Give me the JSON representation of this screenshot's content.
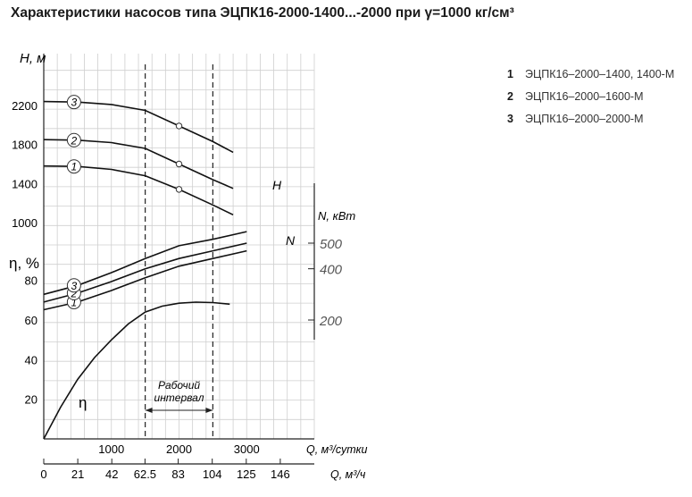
{
  "title": "Характеристики насосов типа  ЭЦПК16-2000-1400...-2000 при γ=1000 кг/см³",
  "legend": [
    {
      "num": "1",
      "name": "ЭЦПК16–2000–1400, 1400-М"
    },
    {
      "num": "2",
      "name": "ЭЦПК16–2000–1600-М"
    },
    {
      "num": "3",
      "name": "ЭЦПК16–2000–2000-М"
    }
  ],
  "chart_data": {
    "type": "line",
    "x_axis_top": {
      "label": "Q, м³/сутки",
      "ticks": [
        0,
        1000,
        2000,
        3000
      ],
      "tick_labels": [
        "1000",
        "2000",
        "3000"
      ],
      "range": [
        0,
        4000
      ]
    },
    "x_axis_bottom": {
      "label": "Q, м³/ч",
      "ticks": [
        0,
        21,
        42,
        62.5,
        83,
        104,
        125,
        146
      ],
      "tick_labels": [
        "0",
        "21",
        "42",
        "62.5",
        "83",
        "104",
        "125",
        "146"
      ]
    },
    "y_axis_head": {
      "label": "H, м",
      "ticks": [
        1000,
        1400,
        1800,
        2200
      ],
      "tick_labels": [
        "1000",
        "1400",
        "1800",
        "2200"
      ]
    },
    "y_axis_eff": {
      "label": "η, %",
      "ticks": [
        20,
        40,
        60,
        80
      ],
      "tick_labels": [
        "20",
        "40",
        "60",
        "80"
      ]
    },
    "y_axis_power": {
      "label": "N, кВт",
      "ticks": [
        200,
        400,
        500
      ],
      "tick_labels": [
        "200",
        "400",
        "500"
      ]
    },
    "working_interval": {
      "label": "Рабочий интервал",
      "label_line1": "Рабочий",
      "label_line2": "интервал",
      "range": [
        1500,
        2500
      ]
    },
    "head_label": "H",
    "power_label": "N",
    "eff_label": "η",
    "head_series": [
      {
        "name": "1",
        "x": [
          0,
          500,
          1000,
          1500,
          2000,
          2500,
          2800
        ],
        "y": [
          1580,
          1575,
          1545,
          1480,
          1340,
          1180,
          1080
        ]
      },
      {
        "name": "2",
        "x": [
          0,
          500,
          1000,
          1500,
          2000,
          2500,
          2800
        ],
        "y": [
          1850,
          1845,
          1820,
          1760,
          1600,
          1440,
          1350
        ]
      },
      {
        "name": "3",
        "x": [
          0,
          500,
          1000,
          1500,
          2000,
          2500,
          2800
        ],
        "y": [
          2240,
          2235,
          2210,
          2150,
          1990,
          1830,
          1720
        ]
      }
    ],
    "power_series": [
      {
        "name": "1",
        "x": [
          0,
          500,
          1000,
          1500,
          2000,
          2500,
          3000
        ],
        "y": [
          240,
          270,
          315,
          365,
          410,
          440,
          470
        ]
      },
      {
        "name": "2",
        "x": [
          0,
          500,
          1000,
          1500,
          2000,
          2500,
          3000
        ],
        "y": [
          270,
          305,
          350,
          400,
          440,
          470,
          500
        ]
      },
      {
        "name": "3",
        "x": [
          0,
          500,
          1000,
          1500,
          2000,
          2500,
          3000
        ],
        "y": [
          300,
          335,
          385,
          440,
          490,
          515,
          545
        ]
      }
    ],
    "efficiency_series": [
      {
        "name": "η",
        "x": [
          0,
          250,
          500,
          750,
          1000,
          1250,
          1500,
          1750,
          2000,
          2250,
          2500,
          2750
        ],
        "y": [
          0,
          16,
          30,
          41,
          50,
          58,
          64,
          67,
          68.5,
          69,
          68.8,
          68
        ]
      }
    ],
    "markers_head": [
      {
        "series": "1",
        "x": 2000,
        "y": 1340
      },
      {
        "series": "2",
        "x": 2000,
        "y": 1600
      },
      {
        "series": "3",
        "x": 2000,
        "y": 1990
      }
    ]
  }
}
